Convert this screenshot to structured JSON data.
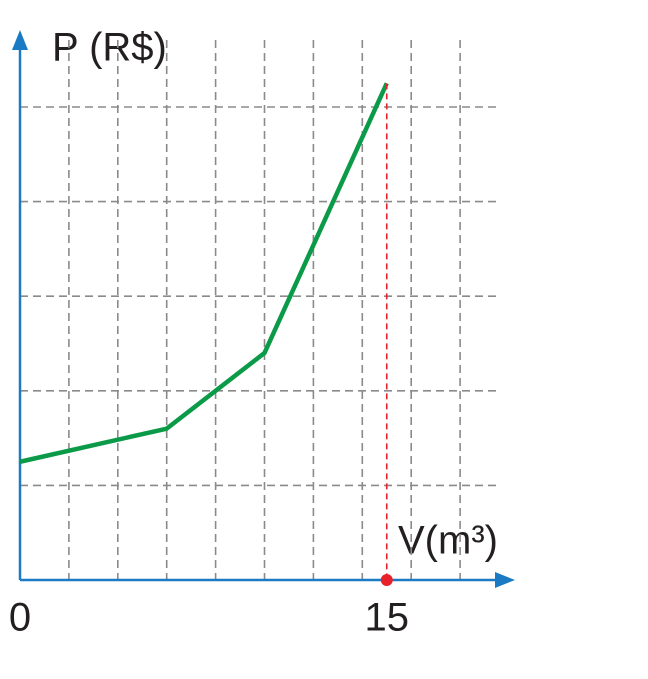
{
  "chart_data": {
    "type": "line",
    "y_label": "P (R$)",
    "x_label": "V(m³)",
    "x": [
      0,
      6,
      10,
      15
    ],
    "values": [
      1.25,
      1.6,
      2.4,
      5.25
    ],
    "color": "#0a9a48",
    "xlim": [
      0,
      20
    ],
    "xticks": [
      0,
      15
    ],
    "x_grid": [
      2,
      4,
      6,
      8,
      10,
      12,
      14,
      16,
      18
    ],
    "ylim": [
      0,
      5.8
    ],
    "yticks": [
      1,
      2,
      3,
      4,
      5
    ],
    "grid": true,
    "axis_color": "#1a7ac4",
    "marker_color": "#e8202a"
  }
}
